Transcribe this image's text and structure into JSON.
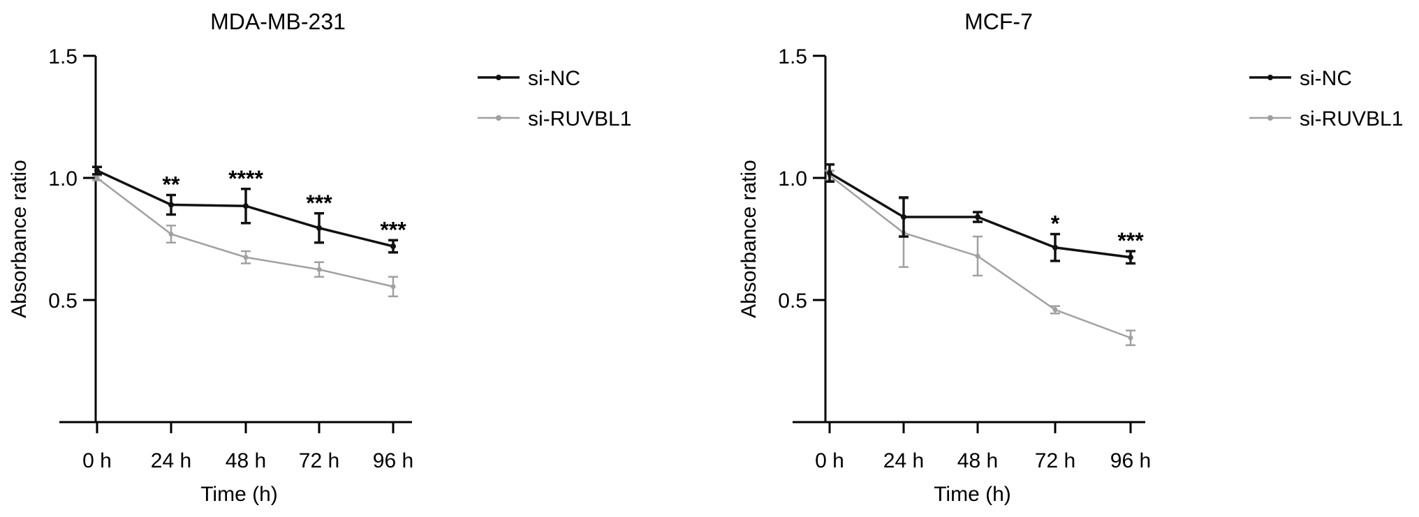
{
  "chart_data": [
    {
      "type": "line",
      "title": "MDA-MB-231",
      "xlabel": "Time (h)",
      "ylabel": "Absorbance ratio",
      "categories": [
        "0 h",
        "24 h",
        "48 h",
        "72 h",
        "96 h"
      ],
      "ylim": [
        0,
        1.5
      ],
      "yticks": [
        "0.5",
        "1.0",
        "1.5"
      ],
      "legend_position": "right",
      "series": [
        {
          "name": "si-NC",
          "color": "#111111",
          "values": [
            1.03,
            0.89,
            0.885,
            0.795,
            0.72
          ],
          "errors": [
            0.015,
            0.04,
            0.07,
            0.06,
            0.025
          ]
        },
        {
          "name": "si-RUVBL1",
          "color": "#a0a0a0",
          "values": [
            1.0,
            0.77,
            0.675,
            0.625,
            0.555
          ],
          "errors": [
            0.01,
            0.035,
            0.025,
            0.03,
            0.04
          ]
        }
      ],
      "annotations": [
        {
          "category": "24 h",
          "text": "**"
        },
        {
          "category": "48 h",
          "text": "****"
        },
        {
          "category": "72 h",
          "text": "***"
        },
        {
          "category": "96 h",
          "text": "***"
        }
      ]
    },
    {
      "type": "line",
      "title": "MCF-7",
      "xlabel": "Time (h)",
      "ylabel": "Absorbance ratio",
      "categories": [
        "0 h",
        "24 h",
        "48 h",
        "72 h",
        "96 h"
      ],
      "ylim": [
        0,
        1.5
      ],
      "yticks": [
        "0.5",
        "1.0",
        "1.5"
      ],
      "legend_position": "right",
      "series": [
        {
          "name": "si-NC",
          "color": "#111111",
          "values": [
            1.02,
            0.84,
            0.84,
            0.715,
            0.675
          ],
          "errors": [
            0.035,
            0.08,
            0.02,
            0.055,
            0.025
          ]
        },
        {
          "name": "si-RUVBL1",
          "color": "#a0a0a0",
          "values": [
            1.01,
            0.775,
            0.68,
            0.46,
            0.345
          ],
          "errors": [
            0.02,
            0.14,
            0.08,
            0.015,
            0.03
          ]
        }
      ],
      "annotations": [
        {
          "category": "72 h",
          "text": "*"
        },
        {
          "category": "96 h",
          "text": "***"
        }
      ]
    }
  ]
}
